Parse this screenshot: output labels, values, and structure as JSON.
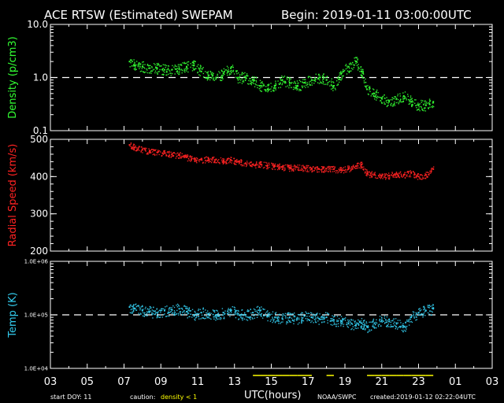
{
  "header": {
    "title": "ACE RTSW (Estimated) SWEPAM",
    "begin": "Begin: 2019-01-11 03:00:00UTC"
  },
  "footer": {
    "start_doy": "start DOY:  11",
    "caution_label": "caution:",
    "caution_value": "density < 1",
    "xlabel": "UTC(hours)",
    "source": "NOAA/SWPC",
    "created": "created:2019-01-12 02:22:04UTC"
  },
  "colors": {
    "background": "#000000",
    "axes": "#ffffff",
    "density": "#33ff33",
    "speed": "#ff2222",
    "temp": "#33ccee",
    "caution": "#ffff00"
  },
  "chart_data": [
    {
      "type": "scatter",
      "title": "",
      "ylabel": "Density (p/cm3)",
      "yscale": "log",
      "ylim": [
        0.1,
        10.0
      ],
      "ytick_labels": [
        "10.0",
        "1.0",
        "0.1"
      ],
      "xlim": [
        3,
        27
      ],
      "reference_line": 1.0,
      "series": [
        {
          "x": [
            7.3,
            7.6,
            8.0,
            8.4,
            8.8,
            9.2,
            9.6,
            10.0,
            10.4,
            10.8,
            11.2,
            11.6,
            12.0,
            12.4,
            12.8,
            13.2,
            13.6,
            14.0,
            14.4,
            14.8,
            15.2,
            15.6,
            16.0,
            16.4,
            16.8,
            17.2,
            17.6,
            18.0,
            18.4,
            18.8,
            19.2,
            19.6,
            19.9,
            20.2,
            20.6,
            21.0,
            21.4,
            21.8,
            22.2,
            22.6,
            23.0,
            23.4,
            23.8
          ],
          "y": [
            2.0,
            1.7,
            1.6,
            1.5,
            1.5,
            1.4,
            1.4,
            1.5,
            1.6,
            1.7,
            1.3,
            1.1,
            1.0,
            1.2,
            1.5,
            1.0,
            1.0,
            0.9,
            0.7,
            0.6,
            0.7,
            0.9,
            0.8,
            0.7,
            0.8,
            0.9,
            1.0,
            0.9,
            0.7,
            1.2,
            1.6,
            2.0,
            1.3,
            0.6,
            0.5,
            0.4,
            0.35,
            0.4,
            0.45,
            0.35,
            0.3,
            0.3,
            0.35
          ]
        }
      ]
    },
    {
      "type": "scatter",
      "title": "",
      "ylabel": "Radial Speed (km/s)",
      "ylim": [
        200,
        500
      ],
      "yticks": [
        200,
        300,
        400,
        500
      ],
      "xlim": [
        3,
        27
      ],
      "series": [
        {
          "x": [
            7.3,
            7.6,
            8.0,
            8.4,
            8.8,
            9.2,
            9.6,
            10.0,
            10.4,
            10.8,
            11.2,
            11.6,
            12.0,
            12.4,
            12.8,
            13.2,
            13.6,
            14.0,
            14.4,
            14.8,
            15.2,
            15.6,
            16.0,
            16.4,
            16.8,
            17.2,
            17.6,
            18.0,
            18.4,
            18.8,
            19.2,
            19.6,
            19.9,
            20.2,
            20.6,
            21.0,
            21.4,
            21.8,
            22.2,
            22.6,
            23.0,
            23.4,
            23.8
          ],
          "y": [
            485,
            478,
            472,
            468,
            465,
            463,
            460,
            458,
            452,
            448,
            445,
            448,
            446,
            442,
            445,
            440,
            436,
            432,
            433,
            430,
            428,
            426,
            424,
            425,
            423,
            422,
            420,
            421,
            420,
            418,
            422,
            428,
            432,
            408,
            405,
            402,
            403,
            408,
            405,
            410,
            400,
            405,
            420
          ]
        }
      ]
    },
    {
      "type": "scatter",
      "title": "",
      "ylabel": "Temp (K)",
      "yscale": "log",
      "ylim": [
        10000,
        1000000
      ],
      "ytick_labels": [
        "1.0E+06",
        "1.0E+05",
        "1.0E+04"
      ],
      "xlim": [
        3,
        27
      ],
      "reference_line": 100000,
      "series": [
        {
          "x": [
            7.3,
            7.6,
            8.0,
            8.4,
            8.8,
            9.2,
            9.6,
            10.0,
            10.4,
            10.8,
            11.2,
            11.6,
            12.0,
            12.4,
            12.8,
            13.2,
            13.6,
            14.0,
            14.4,
            14.8,
            15.2,
            15.6,
            16.0,
            16.4,
            16.8,
            17.2,
            17.6,
            18.0,
            18.4,
            18.8,
            19.2,
            19.6,
            19.9,
            20.2,
            20.6,
            21.0,
            21.4,
            21.8,
            22.2,
            22.6,
            23.0,
            23.4,
            23.8
          ],
          "y": [
            140000,
            130000,
            120000,
            115000,
            110000,
            120000,
            125000,
            130000,
            115000,
            100000,
            110000,
            105000,
            100000,
            110000,
            120000,
            105000,
            100000,
            110000,
            120000,
            95000,
            90000,
            85000,
            90000,
            85000,
            95000,
            90000,
            85000,
            90000,
            80000,
            75000,
            70000,
            65000,
            70000,
            60000,
            70000,
            80000,
            75000,
            70000,
            60000,
            90000,
            110000,
            120000,
            130000
          ]
        }
      ]
    }
  ],
  "x_axis": {
    "tick_labels": [
      "03",
      "05",
      "07",
      "09",
      "11",
      "13",
      "15",
      "17",
      "19",
      "21",
      "23",
      "01",
      "03"
    ]
  }
}
